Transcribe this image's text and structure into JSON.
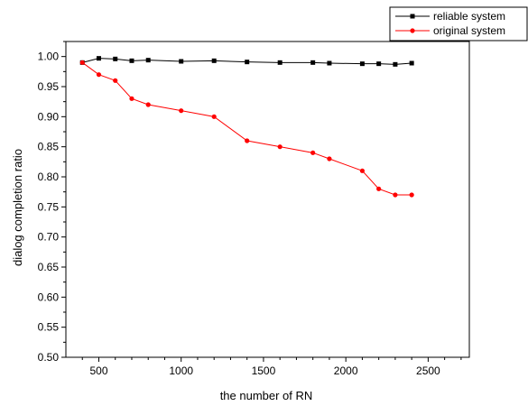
{
  "chart_data": {
    "type": "line",
    "xlabel": "the number of RN",
    "ylabel": "dialog completion ratio",
    "xlim": [
      300,
      2750
    ],
    "ylim": [
      0.5,
      1.025
    ],
    "x_ticks": [
      500,
      1000,
      1500,
      2000,
      2500
    ],
    "x_tick_labels": [
      "500",
      "1000",
      "1500",
      "2000",
      "2500"
    ],
    "y_ticks": [
      0.5,
      0.55,
      0.6,
      0.65,
      0.7,
      0.75,
      0.8,
      0.85,
      0.9,
      0.95,
      1.0
    ],
    "y_tick_labels": [
      "0.50",
      "0.55",
      "0.60",
      "0.65",
      "0.70",
      "0.75",
      "0.80",
      "0.85",
      "0.90",
      "0.95",
      "1.00"
    ],
    "grid": false,
    "legend_position": "top-right",
    "series": [
      {
        "name": "reliable system",
        "color": "#000000",
        "marker": "square",
        "x": [
          400,
          500,
          600,
          700,
          800,
          1000,
          1200,
          1400,
          1600,
          1800,
          1900,
          2100,
          2200,
          2300,
          2400
        ],
        "y": [
          0.99,
          0.997,
          0.996,
          0.993,
          0.994,
          0.992,
          0.993,
          0.991,
          0.99,
          0.99,
          0.989,
          0.988,
          0.988,
          0.987,
          0.989
        ]
      },
      {
        "name": "original system",
        "color": "#ff0000",
        "marker": "circle",
        "x": [
          400,
          500,
          600,
          700,
          800,
          1000,
          1200,
          1400,
          1600,
          1800,
          1900,
          2100,
          2200,
          2300,
          2400
        ],
        "y": [
          0.99,
          0.97,
          0.96,
          0.93,
          0.92,
          0.91,
          0.9,
          0.86,
          0.85,
          0.84,
          0.83,
          0.81,
          0.78,
          0.77,
          0.77
        ]
      }
    ]
  }
}
